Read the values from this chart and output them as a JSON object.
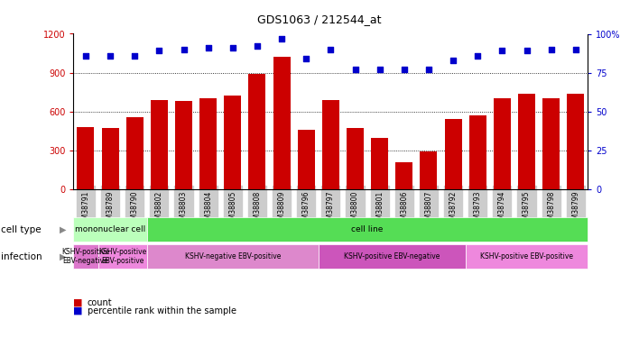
{
  "title": "GDS1063 / 212544_at",
  "samples": [
    "GSM38791",
    "GSM38789",
    "GSM38790",
    "GSM38802",
    "GSM38803",
    "GSM38804",
    "GSM38805",
    "GSM38808",
    "GSM38809",
    "GSM38796",
    "GSM38797",
    "GSM38800",
    "GSM38801",
    "GSM38806",
    "GSM38807",
    "GSM38792",
    "GSM38793",
    "GSM38794",
    "GSM38795",
    "GSM38798",
    "GSM38799"
  ],
  "counts": [
    480,
    470,
    560,
    690,
    680,
    700,
    720,
    890,
    1020,
    460,
    690,
    470,
    400,
    210,
    290,
    540,
    570,
    700,
    740,
    700,
    740
  ],
  "percentile_ranks": [
    86,
    86,
    86,
    89,
    90,
    91,
    91,
    92,
    97,
    84,
    90,
    77,
    77,
    77,
    77,
    83,
    86,
    89,
    89,
    90,
    90
  ],
  "ylim_left": [
    0,
    1200
  ],
  "ylim_right": [
    0,
    100
  ],
  "yticks_left": [
    0,
    300,
    600,
    900,
    1200
  ],
  "yticks_right": [
    0,
    25,
    50,
    75,
    100
  ],
  "bar_color": "#cc0000",
  "dot_color": "#0000cc",
  "cell_type_groups": [
    {
      "text": "mononuclear cell",
      "start": 0,
      "end": 3,
      "color": "#bbffbb"
    },
    {
      "text": "cell line",
      "start": 3,
      "end": 21,
      "color": "#55dd55"
    }
  ],
  "infection_groups": [
    {
      "text": "KSHV-positive\nEBV-negative",
      "start": 0,
      "end": 1,
      "color": "#dd77cc"
    },
    {
      "text": "KSHV-positive\nEBV-positive",
      "start": 1,
      "end": 3,
      "color": "#ee88dd"
    },
    {
      "text": "KSHV-negative EBV-positive",
      "start": 3,
      "end": 10,
      "color": "#dd88cc"
    },
    {
      "text": "KSHV-positive EBV-negative",
      "start": 10,
      "end": 16,
      "color": "#cc55bb"
    },
    {
      "text": "KSHV-positive EBV-positive",
      "start": 16,
      "end": 21,
      "color": "#ee88dd"
    }
  ],
  "xtick_bg_color": "#cccccc"
}
